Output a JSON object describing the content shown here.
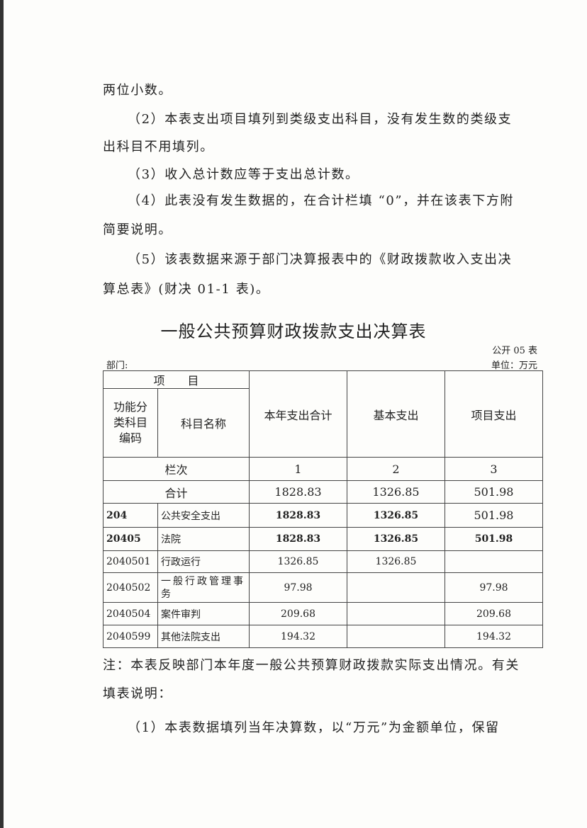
{
  "paragraphs_top": [
    "两位小数。",
    "（2）本表支出项目填列到类级支出科目，没有发生数的类级支",
    "出科目不用填列。",
    "（3）收入总计数应等于支出总计数。",
    "（4）此表没有发生数据的，在合计栏填 “0”，并在该表下方附",
    "简要说明。",
    "（5）该表数据来源于部门决算报表中的《财政拨款收入支出决",
    "算总表》(财决 01-1 表)。"
  ],
  "table_title": "一般公共预算财政拨款支出决算表",
  "form_code": "公开 05 表",
  "department_label": "部门:",
  "unit_label": "单位：万元",
  "table": {
    "header_item": "项　　目",
    "header_code": "功能分类科目编码",
    "header_name": "科目名称",
    "header_total": "本年支出合计",
    "header_basic": "基本支出",
    "header_project": "项目支出",
    "column_index_label": "栏次",
    "column_indices": [
      "1",
      "2",
      "3"
    ],
    "sum_label": "合计",
    "sum": [
      "1828.83",
      "1326.85",
      "501.98"
    ],
    "rows": [
      {
        "code": "204",
        "name": "公共安全支出",
        "total": "1828.83",
        "basic": "1326.85",
        "project": "501.98"
      },
      {
        "code": "20405",
        "name": "法院",
        "total": "1828.83",
        "basic": "1326.85",
        "project": "501.98"
      },
      {
        "code": "2040501",
        "name": "行政运行",
        "total": "1326.85",
        "basic": "1326.85",
        "project": ""
      },
      {
        "code": "2040502",
        "name": "一般行政管理事务",
        "total": "97.98",
        "basic": "",
        "project": "97.98"
      },
      {
        "code": "2040504",
        "name": "案件审判",
        "total": "209.68",
        "basic": "",
        "project": "209.68"
      },
      {
        "code": "2040599",
        "name": "其他法院支出",
        "total": "194.32",
        "basic": "",
        "project": "194.32"
      }
    ]
  },
  "paragraphs_bottom": [
    "注：本表反映部门本年度一般公共预算财政拨款实际支出情况。有关",
    "填表说明：",
    "（1）本表数据填列当年决算数，以“万元”为金额单位，保留"
  ]
}
